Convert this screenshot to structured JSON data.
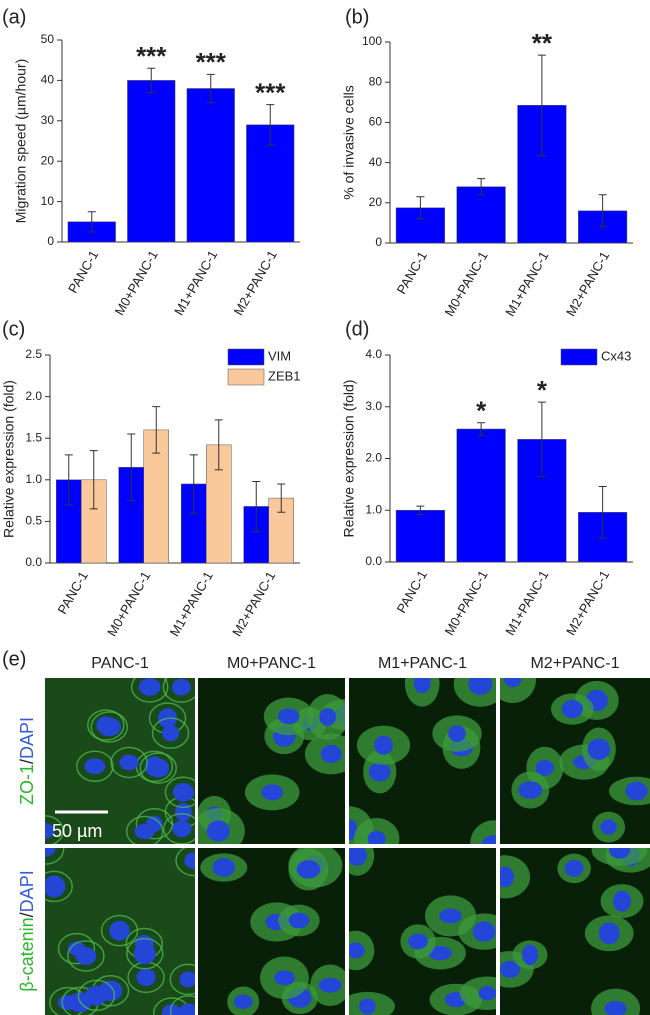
{
  "chart_data": [
    {
      "type": "bar",
      "label": "(a)",
      "y_label": "Migration speed (µm/hour)",
      "categories": [
        "PANC-1",
        "M0+PANC-1",
        "M1+PANC-1",
        "M2+PANC-1"
      ],
      "values": [
        5,
        40,
        38,
        29
      ],
      "error": [
        2.5,
        3,
        3.5,
        5
      ],
      "color": "#0000ff",
      "value_annotations": [
        null,
        "***",
        "***",
        "***"
      ],
      "ylim": [
        0,
        50
      ],
      "yticks": [
        0,
        10,
        20,
        30,
        40,
        50
      ]
    },
    {
      "type": "bar",
      "label": "(b)",
      "y_label": "% of invasive cells",
      "categories": [
        "PANC-1",
        "M0+PANC-1",
        "M1+PANC-1",
        "M2+PANC-1"
      ],
      "values": [
        17.5,
        28,
        68.5,
        16
      ],
      "error": [
        5.5,
        4,
        25,
        8
      ],
      "color": "#0000ff",
      "value_annotations": [
        null,
        null,
        "**",
        null
      ],
      "ylim": [
        0,
        100
      ],
      "yticks": [
        0,
        20,
        40,
        60,
        80,
        100
      ]
    },
    {
      "type": "bar",
      "label": "(c)",
      "y_label": "Relative expression (fold)",
      "categories": [
        "PANC-1",
        "M0+PANC-1",
        "M1+PANC-1",
        "M2+PANC-1"
      ],
      "series": [
        {
          "name": "VIM",
          "color": "#0000ff",
          "values": [
            1.0,
            1.15,
            0.95,
            0.68
          ],
          "error": [
            0.3,
            0.4,
            0.35,
            0.3
          ]
        },
        {
          "name": "ZEB1",
          "color": "#f9c89b",
          "values": [
            1.0,
            1.6,
            1.42,
            0.78
          ],
          "error": [
            0.35,
            0.28,
            0.3,
            0.17
          ]
        }
      ],
      "legend": "upper right",
      "ylim": [
        0,
        2.5
      ],
      "yticks": [
        {
          "value": 0,
          "label": "0.0"
        },
        {
          "value": 0.5,
          "label": "0.5"
        },
        {
          "value": 1,
          "label": "1.0"
        },
        {
          "value": 1.5,
          "label": "1.5"
        },
        {
          "value": 2,
          "label": "2.0"
        },
        {
          "value": 2.5,
          "label": "2.5"
        }
      ]
    },
    {
      "type": "bar",
      "label": "(d)",
      "y_label": "Relative expression (fold)",
      "categories": [
        "PANC-1",
        "M0+PANC-1",
        "M1+PANC-1",
        "M2+PANC-1"
      ],
      "series": [
        {
          "name": "Cx43",
          "color": "#0000ff",
          "values": [
            1.0,
            2.57,
            2.37,
            0.96
          ],
          "error": [
            0.08,
            0.12,
            0.72,
            0.5
          ]
        }
      ],
      "legend": "upper right",
      "value_annotations": [
        null,
        "*",
        "*",
        null
      ],
      "ylim": [
        0,
        4
      ],
      "yticks": [
        {
          "value": 0,
          "label": "0.0"
        },
        {
          "value": 1,
          "label": "1.0"
        },
        {
          "value": 2,
          "label": "2.0"
        },
        {
          "value": 3,
          "label": "3.0"
        },
        {
          "value": 4,
          "label": "4.0"
        }
      ]
    }
  ],
  "panel_e": {
    "label": "(e)",
    "columns": [
      "PANC-1",
      "M0+PANC-1",
      "M1+PANC-1",
      "M2+PANC-1"
    ],
    "rows": [
      {
        "stain": "ZO-1",
        "separator": "/",
        "counterstain": "DAPI"
      },
      {
        "stain": "β-catenin",
        "separator": "/",
        "counterstain": "DAPI"
      }
    ],
    "scale_bar": "50 µm"
  }
}
